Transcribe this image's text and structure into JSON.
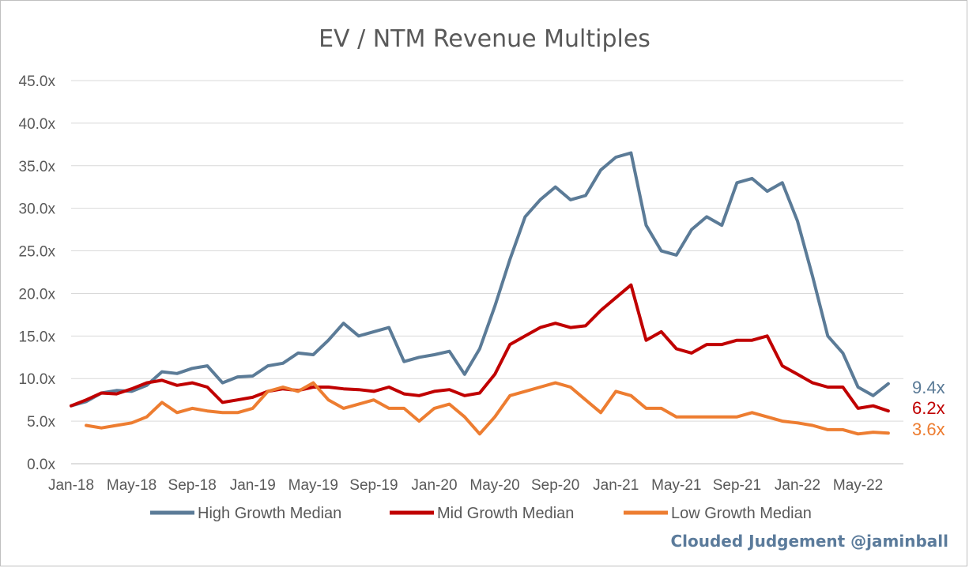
{
  "watermark": "Clouded Judgement @jaminball",
  "chart_data": {
    "type": "line",
    "title": "EV / NTM Revenue Multiples",
    "xlabel": "",
    "ylabel": "",
    "ylim": [
      0,
      45
    ],
    "y_ticks": [
      "0.0x",
      "5.0x",
      "10.0x",
      "15.0x",
      "20.0x",
      "25.0x",
      "30.0x",
      "35.0x",
      "40.0x",
      "45.0x"
    ],
    "x_ticks": [
      "Jan-18",
      "May-18",
      "Sep-18",
      "Jan-19",
      "May-19",
      "Sep-19",
      "Jan-20",
      "May-20",
      "Sep-20",
      "Jan-21",
      "May-21",
      "Sep-21",
      "Jan-22",
      "May-22"
    ],
    "x_range": [
      "2018-01",
      "2022-08"
    ],
    "grid": true,
    "legend": "bottom",
    "x": [
      "2018-01",
      "2018-02",
      "2018-03",
      "2018-04",
      "2018-05",
      "2018-06",
      "2018-07",
      "2018-08",
      "2018-09",
      "2018-10",
      "2018-11",
      "2018-12",
      "2019-01",
      "2019-02",
      "2019-03",
      "2019-04",
      "2019-05",
      "2019-06",
      "2019-07",
      "2019-08",
      "2019-09",
      "2019-10",
      "2019-11",
      "2019-12",
      "2020-01",
      "2020-02",
      "2020-03",
      "2020-04",
      "2020-05",
      "2020-06",
      "2020-07",
      "2020-08",
      "2020-09",
      "2020-10",
      "2020-11",
      "2020-12",
      "2021-01",
      "2021-02",
      "2021-03",
      "2021-04",
      "2021-05",
      "2021-06",
      "2021-07",
      "2021-08",
      "2021-09",
      "2021-10",
      "2021-11",
      "2021-12",
      "2022-01",
      "2022-02",
      "2022-03",
      "2022-04",
      "2022-05",
      "2022-06",
      "2022-07"
    ],
    "series": [
      {
        "name": "High Growth Median",
        "color": "#5b7b97",
        "end_label": "9.4x",
        "values": [
          6.8,
          7.3,
          8.3,
          8.6,
          8.5,
          9.2,
          10.8,
          10.6,
          11.2,
          11.5,
          9.5,
          10.2,
          10.3,
          11.5,
          11.8,
          13.0,
          12.8,
          14.5,
          16.5,
          15.0,
          15.5,
          16.0,
          12.0,
          12.5,
          12.8,
          13.2,
          10.5,
          13.5,
          18.5,
          24.0,
          29.0,
          31.0,
          32.5,
          31.0,
          31.5,
          34.5,
          36.0,
          36.5,
          28.0,
          25.0,
          24.5,
          27.5,
          29.0,
          28.0,
          33.0,
          33.5,
          32.0,
          33.0,
          28.5,
          22.0,
          15.0,
          13.0,
          9.0,
          8.0,
          9.4
        ]
      },
      {
        "name": "Mid Growth Median",
        "color": "#c00000",
        "end_label": "6.2x",
        "values": [
          6.8,
          7.5,
          8.3,
          8.2,
          8.8,
          9.5,
          9.8,
          9.2,
          9.5,
          9.0,
          7.2,
          7.5,
          7.8,
          8.5,
          8.8,
          8.6,
          9.0,
          9.0,
          8.8,
          8.7,
          8.5,
          9.0,
          8.2,
          8.0,
          8.5,
          8.7,
          8.0,
          8.3,
          10.5,
          14.0,
          15.0,
          16.0,
          16.5,
          16.0,
          16.2,
          18.0,
          19.5,
          21.0,
          14.5,
          15.5,
          13.5,
          13.0,
          14.0,
          14.0,
          14.5,
          14.5,
          15.0,
          11.5,
          10.5,
          9.5,
          9.0,
          9.0,
          6.5,
          6.8,
          6.2
        ]
      },
      {
        "name": "Low Growth Median",
        "color": "#ed7d31",
        "end_label": "3.6x",
        "values": [
          null,
          4.5,
          4.2,
          4.5,
          4.8,
          5.5,
          7.2,
          6.0,
          6.5,
          6.2,
          6.0,
          6.0,
          6.5,
          8.5,
          9.0,
          8.5,
          9.5,
          7.5,
          6.5,
          7.0,
          7.5,
          6.5,
          6.5,
          5.0,
          6.5,
          7.0,
          5.5,
          3.5,
          5.5,
          8.0,
          8.5,
          9.0,
          9.5,
          9.0,
          7.5,
          6.0,
          8.5,
          8.0,
          6.5,
          6.5,
          5.5,
          5.5,
          5.5,
          5.5,
          5.5,
          6.0,
          5.5,
          5.0,
          4.8,
          4.5,
          4.0,
          4.0,
          3.5,
          3.7,
          3.6
        ]
      }
    ]
  }
}
